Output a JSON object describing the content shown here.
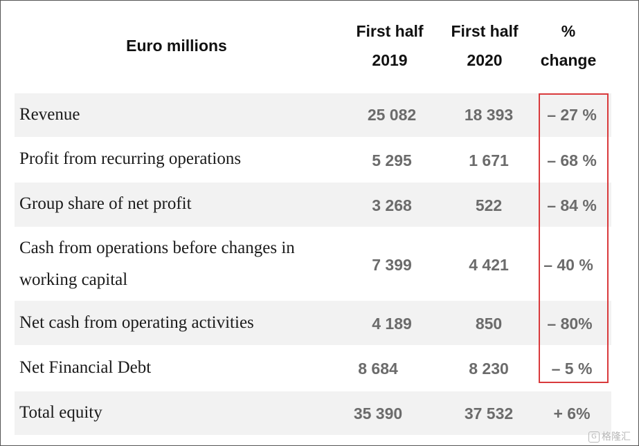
{
  "header": {
    "label": "Euro millions",
    "col1_line1": "First half",
    "col1_line2": "2019",
    "col2_line1": "First half",
    "col2_line2": "2020",
    "col3_line1": "%",
    "col3_line2": "change"
  },
  "rows": [
    {
      "label": "Revenue",
      "h1_2019": "25 082",
      "h1_2020": "18 393",
      "change": "– 27 %"
    },
    {
      "label": "Profit from recurring operations",
      "h1_2019": "5 295",
      "h1_2020": "1 671",
      "change": "– 68 %"
    },
    {
      "label": "Group share of net profit",
      "h1_2019": "3 268",
      "h1_2020": "522",
      "change": "– 84 %"
    },
    {
      "label_line1": "Cash from operations before changes in",
      "label_line2": "working capital",
      "h1_2019": "7 399",
      "h1_2020": "4 421",
      "change": "– 40 %"
    },
    {
      "label": "Net cash from operating activities",
      "h1_2019": "4 189",
      "h1_2020": "850",
      "change": "– 80%"
    },
    {
      "label": "Net Financial Debt",
      "h1_2019": "8 684",
      "h1_2020": "8 230",
      "change": "– 5 %"
    },
    {
      "label": "Total equity",
      "h1_2019": "35 390",
      "h1_2020": "37 532",
      "change": "+ 6%"
    }
  ],
  "watermark": {
    "icon": "G",
    "text": "格隆汇"
  },
  "colors": {
    "highlight_border": "#d9393b",
    "row_shade": "#f2f2f2",
    "value_text": "#6b6b6b"
  }
}
